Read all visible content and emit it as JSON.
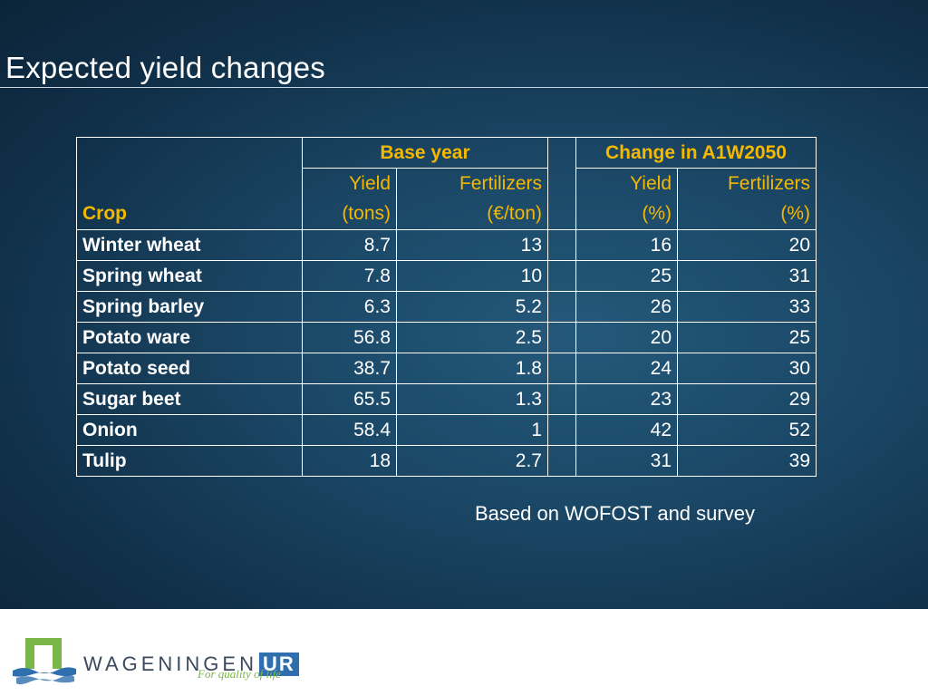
{
  "slide": {
    "title": "Expected yield changes",
    "note": "Based on WOFOST and survey"
  },
  "table": {
    "group_headers": {
      "base_year": "Base year",
      "change": "Change in A1W2050"
    },
    "col_headers": {
      "crop": "Crop",
      "base_yield_line1": "Yield",
      "base_yield_line2": "(tons)",
      "base_fert_line1": "Fertilizers",
      "base_fert_line2": "(€/ton)",
      "chg_yield_line1": "Yield",
      "chg_yield_line2": "(%)",
      "chg_fert_line1": "Fertilizers",
      "chg_fert_line2": "(%)"
    },
    "rows": [
      {
        "crop": "Winter wheat",
        "base_yield": "8.7",
        "base_fert": "13",
        "chg_yield": "16",
        "chg_fert": "20"
      },
      {
        "crop": "Spring wheat",
        "base_yield": "7.8",
        "base_fert": "10",
        "chg_yield": "25",
        "chg_fert": "31"
      },
      {
        "crop": "Spring barley",
        "base_yield": "6.3",
        "base_fert": "5.2",
        "chg_yield": "26",
        "chg_fert": "33"
      },
      {
        "crop": "Potato ware",
        "base_yield": "56.8",
        "base_fert": "2.5",
        "chg_yield": "20",
        "chg_fert": "25"
      },
      {
        "crop": "Potato seed",
        "base_yield": "38.7",
        "base_fert": "1.8",
        "chg_yield": "24",
        "chg_fert": "30"
      },
      {
        "crop": "Sugar beet",
        "base_yield": "65.5",
        "base_fert": "1.3",
        "chg_yield": "23",
        "chg_fert": "29"
      },
      {
        "crop": "Onion",
        "base_yield": "58.4",
        "base_fert": "1",
        "chg_yield": "42",
        "chg_fert": "52"
      },
      {
        "crop": "Tulip",
        "base_yield": "18",
        "base_fert": "2.7",
        "chg_yield": "31",
        "chg_fert": "39"
      }
    ]
  },
  "footer": {
    "logo_word": "WAGENINGEN",
    "logo_ur": "UR",
    "tagline": "For quality of life",
    "colors": {
      "logo_green": "#7ab648",
      "logo_blue": "#2f6fae"
    }
  }
}
